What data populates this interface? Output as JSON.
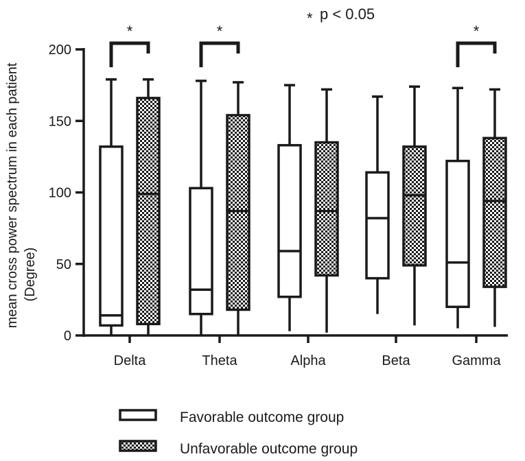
{
  "chart_data": {
    "type": "boxplot",
    "title": "",
    "annotation": "p < 0.05",
    "ylabel_line1": "mean cross power spectrum in each patient",
    "ylabel_line2": "(Degree)",
    "xlabel": "",
    "ylim": [
      0,
      200
    ],
    "yticks": [
      0,
      50,
      100,
      150,
      200
    ],
    "categories": [
      "Delta",
      "Theta",
      "Alpha",
      "Beta",
      "Gamma"
    ],
    "significant": [
      true,
      true,
      false,
      false,
      true
    ],
    "significance_marker": "*",
    "legend_position": "bottom-center",
    "series": [
      {
        "name": "Favorable outcome group",
        "fill": "open",
        "boxes": [
          {
            "min": 0,
            "q1": 7,
            "median": 14,
            "q3": 132,
            "max": 179
          },
          {
            "min": 0,
            "q1": 15,
            "median": 32,
            "q3": 103,
            "max": 178
          },
          {
            "min": 3,
            "q1": 27,
            "median": 59,
            "q3": 133,
            "max": 175
          },
          {
            "min": 15,
            "q1": 40,
            "median": 82,
            "q3": 114,
            "max": 167
          },
          {
            "min": 5,
            "q1": 20,
            "median": 51,
            "q3": 122,
            "max": 173
          }
        ]
      },
      {
        "name": "Unfavorable outcome group",
        "fill": "checkered",
        "boxes": [
          {
            "min": 0,
            "q1": 8,
            "median": 99,
            "q3": 166,
            "max": 179
          },
          {
            "min": 0,
            "q1": 18,
            "median": 87,
            "q3": 154,
            "max": 177
          },
          {
            "min": 2,
            "q1": 42,
            "median": 87,
            "q3": 135,
            "max": 172
          },
          {
            "min": 7,
            "q1": 49,
            "median": 98,
            "q3": 132,
            "max": 174
          },
          {
            "min": 6,
            "q1": 34,
            "median": 94,
            "q3": 138,
            "max": 172
          }
        ]
      }
    ]
  },
  "colors": {
    "ink": "#1a1a1a",
    "box_open": "#ffffff",
    "check_dark": "#1a1a1a",
    "check_light": "#ffffff"
  }
}
